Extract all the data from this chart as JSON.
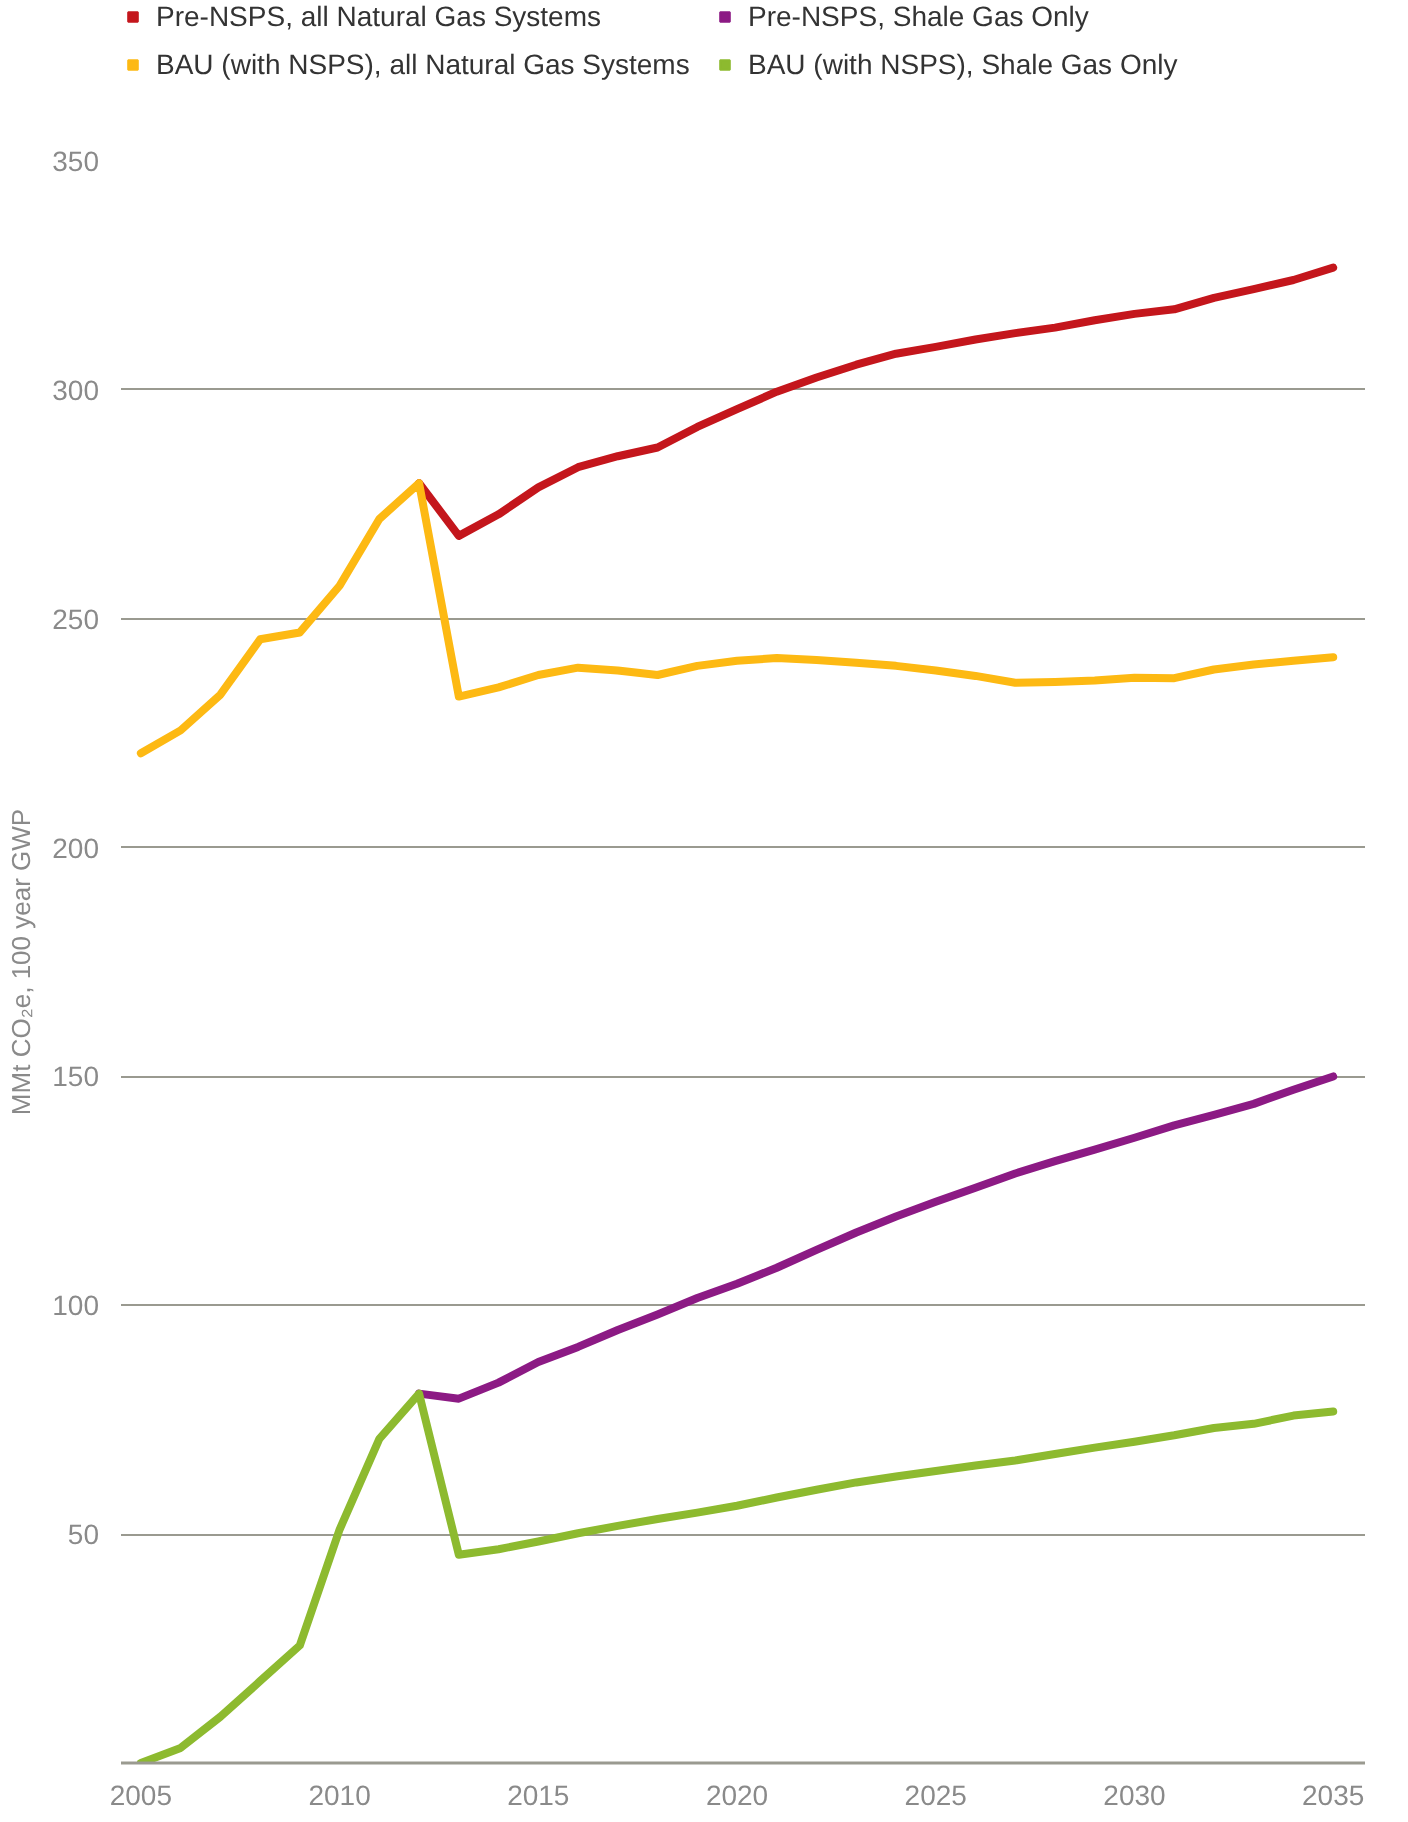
{
  "chart_data": {
    "type": "line",
    "ylabel": "MMt CO₂e, 100 year GWP",
    "x": [
      2005,
      2006,
      2007,
      2008,
      2009,
      2010,
      2011,
      2012,
      2013,
      2014,
      2015,
      2016,
      2017,
      2018,
      2019,
      2020,
      2021,
      2022,
      2023,
      2024,
      2025,
      2026,
      2027,
      2028,
      2029,
      2030,
      2031,
      2032,
      2033,
      2034,
      2035
    ],
    "series": [
      {
        "name": "Pre-NSPS, all Natural Gas Systems",
        "color": "#c4161c",
        "x": [
          2012,
          2013,
          2014,
          2015,
          2016,
          2017,
          2018,
          2019,
          2020,
          2021,
          2022,
          2023,
          2024,
          2025,
          2026,
          2027,
          2028,
          2029,
          2030,
          2031,
          2032,
          2033,
          2034,
          2035
        ],
        "values": [
          279.6,
          268.1,
          272.8,
          278.7,
          283.1,
          285.5,
          287.4,
          291.9,
          295.8,
          299.6,
          302.7,
          305.5,
          307.9,
          309.4,
          311,
          312.4,
          313.6,
          315.2,
          316.6,
          317.6,
          320.1,
          322,
          324,
          326.7
        ]
      },
      {
        "name": "BAU (with NSPS), all Natural Gas Systems",
        "color": "#fdb913",
        "values": [
          220.6,
          225.6,
          233.4,
          245.5,
          247,
          257.2,
          271.8,
          279.6,
          233,
          235,
          237.7,
          239.3,
          238.7,
          237.7,
          239.7,
          240.8,
          241.4,
          241,
          240.4,
          239.7,
          238.7,
          237.5,
          236,
          236.2,
          236.5,
          237.1,
          237,
          238.9,
          240,
          240.8,
          241.6
        ]
      },
      {
        "name": "Pre-NSPS, Shale Gas Only",
        "color": "#8c1a84",
        "x": [
          2012,
          2013,
          2014,
          2015,
          2016,
          2017,
          2018,
          2019,
          2020,
          2021,
          2022,
          2023,
          2024,
          2025,
          2026,
          2027,
          2028,
          2029,
          2030,
          2031,
          2032,
          2033,
          2034,
          2035
        ],
        "values": [
          80.7,
          79.6,
          83.1,
          87.6,
          90.9,
          94.6,
          98,
          101.6,
          104.7,
          108.2,
          112.1,
          115.9,
          119.4,
          122.6,
          125.7,
          128.8,
          131.5,
          134,
          136.6,
          139.3,
          141.6,
          144,
          147.1,
          150
        ]
      },
      {
        "name": "BAU (with NSPS), Shale Gas Only",
        "color": "#8dba2f",
        "values": [
          0,
          3.3,
          10.1,
          17.9,
          25.7,
          51,
          70.8,
          80.7,
          45.5,
          46.7,
          48.4,
          50.2,
          51.8,
          53.3,
          54.7,
          56.2,
          58,
          59.7,
          61.3,
          62.6,
          63.8,
          65,
          66.1,
          67.5,
          68.9,
          70.2,
          71.6,
          73.2,
          74.1,
          75.9,
          76.8
        ]
      }
    ],
    "xlim": [
      2004.5,
      2035.8
    ],
    "ylim": [
      0,
      350
    ],
    "xticks": [
      2005,
      2010,
      2015,
      2020,
      2025,
      2030,
      2035
    ],
    "yticks": [
      {
        "value": 0,
        "label": null
      },
      50,
      100,
      150,
      200,
      250,
      300,
      350
    ],
    "grid": "y",
    "legend": "top",
    "marker": "none",
    "line_style": "solid"
  }
}
